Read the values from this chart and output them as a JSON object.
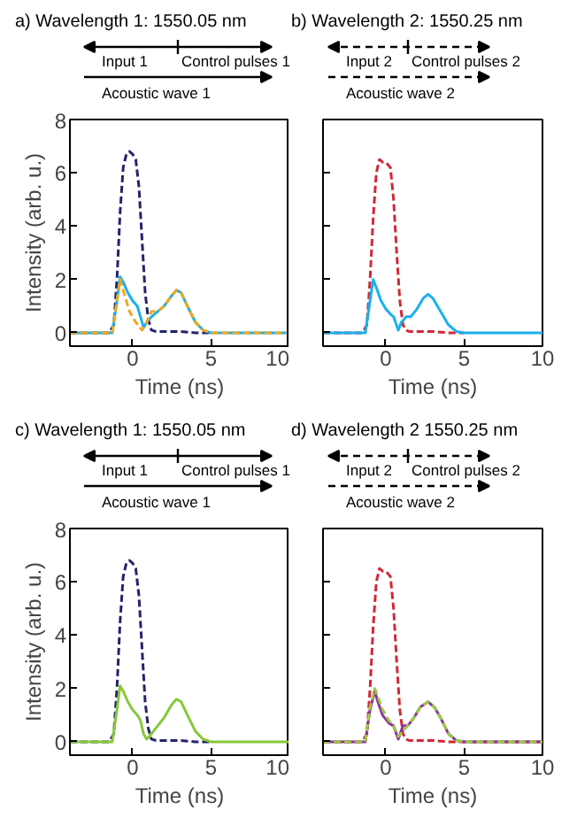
{
  "chart_data": [
    {
      "type": "line",
      "title": "a) Wavelength 1: 1550.05 nm",
      "xlabel": "Time (ns)",
      "ylabel": "Intensity (arb. u.)",
      "annotations": [
        "Input 1",
        "Control pulses 1",
        "Acoustic wave 1"
      ],
      "xlim": [
        -4,
        10
      ],
      "ylim": [
        -0.5,
        8
      ],
      "xticks": [
        0,
        5,
        10
      ],
      "yticks": [
        0,
        2,
        4,
        6,
        8
      ],
      "grid": false,
      "series": [
        {
          "color": "#23236e",
          "line_style": "dashed",
          "x": [
            -4,
            -1.5,
            -1.2,
            -1,
            -0.8,
            -0.6,
            -0.4,
            -0.2,
            0,
            0.2,
            0.4,
            0.6,
            0.8,
            1,
            1.2,
            1.5,
            2,
            3,
            4,
            5
          ],
          "values": [
            0,
            0,
            0.3,
            2,
            4.5,
            6.2,
            6.7,
            6.8,
            6.7,
            6.5,
            5.5,
            3.5,
            1.5,
            0.5,
            0.1,
            0.05,
            0.05,
            0.05,
            0,
            0
          ]
        },
        {
          "color": "#1ab0ec",
          "line_style": "solid",
          "x": [
            -4,
            -1.3,
            -1,
            -0.8,
            -0.6,
            -0.3,
            0,
            0.3,
            0.5,
            0.7,
            0.9,
            1.2,
            1.6,
            2,
            2.5,
            2.8,
            3.1,
            3.5,
            4,
            4.5,
            5,
            9.8
          ],
          "values": [
            0,
            0,
            1.2,
            2.1,
            1.9,
            1.5,
            1.2,
            1,
            0.6,
            0.2,
            0.4,
            0.6,
            0.8,
            1,
            1.4,
            1.6,
            1.5,
            1,
            0.4,
            0.1,
            0,
            0
          ]
        },
        {
          "color": "#f0a820",
          "line_style": "dashed",
          "x": [
            -4,
            -1.3,
            -1,
            -0.8,
            -0.5,
            -0.2,
            0.2,
            0.6,
            0.9,
            1.2,
            1.6,
            2,
            2.5,
            2.8,
            3.1,
            3.5,
            4,
            4.5,
            5,
            9.8
          ],
          "values": [
            0,
            0,
            1.2,
            2,
            1.4,
            0.8,
            0.4,
            0.1,
            0.4,
            0.8,
            0.8,
            1,
            1.4,
            1.6,
            1.5,
            1,
            0.4,
            0.1,
            0,
            0
          ]
        }
      ]
    },
    {
      "type": "line",
      "title": "b) Wavelength 2: 1550.25 nm",
      "xlabel": "Time (ns)",
      "annotations": [
        "Input 2",
        "Control pulses 2",
        "Acoustic wave 2"
      ],
      "xlim": [
        -4,
        10
      ],
      "ylim": [
        -0.5,
        8
      ],
      "xticks": [
        0,
        5,
        10
      ],
      "yticks": [
        0,
        2,
        4,
        6,
        8
      ],
      "tick_labels": "x",
      "grid": false,
      "series": [
        {
          "color": "#d02838",
          "line_style": "dashed",
          "x": [
            -4,
            -1.5,
            -1.2,
            -1,
            -0.8,
            -0.6,
            -0.4,
            -0.2,
            0,
            0.3,
            0.5,
            0.7,
            0.9,
            1.1,
            1.3,
            1.5,
            2,
            3,
            4,
            5
          ],
          "values": [
            0,
            0,
            0.3,
            2,
            4.3,
            6,
            6.5,
            6.4,
            6.4,
            6.2,
            5,
            3,
            1.2,
            0.3,
            0.1,
            0.05,
            0.05,
            0.05,
            0,
            0
          ]
        },
        {
          "color": "#1ab0ec",
          "line_style": "solid",
          "x": [
            -4,
            -1.3,
            -1,
            -0.8,
            -0.6,
            -0.3,
            0,
            0.3,
            0.5,
            0.8,
            1,
            1.3,
            1.6,
            2,
            2.4,
            2.7,
            3,
            3.4,
            4,
            4.5,
            5,
            10
          ],
          "values": [
            0,
            0,
            1.2,
            2,
            1.7,
            1.2,
            0.9,
            0.7,
            0.6,
            0.1,
            0.4,
            0.6,
            0.6,
            0.9,
            1.3,
            1.45,
            1.3,
            0.9,
            0.3,
            0.05,
            0,
            0
          ]
        }
      ]
    },
    {
      "type": "line",
      "title": "c) Wavelength 1: 1550.05 nm",
      "xlabel": "Time (ns)",
      "ylabel": "Intensity (arb. u.)",
      "annotations": [
        "Input 1",
        "Control pulses 1",
        "Acoustic wave 1"
      ],
      "xlim": [
        -4,
        10
      ],
      "ylim": [
        -0.5,
        8
      ],
      "xticks": [
        0,
        5,
        10
      ],
      "yticks": [
        0,
        2,
        4,
        6,
        8
      ],
      "grid": false,
      "series": [
        {
          "color": "#23236e",
          "line_style": "dashed",
          "x": [
            -4,
            -1.5,
            -1.2,
            -1,
            -0.8,
            -0.6,
            -0.4,
            -0.2,
            0,
            0.2,
            0.4,
            0.6,
            0.8,
            1,
            1.2,
            1.5,
            2,
            3,
            4,
            5
          ],
          "values": [
            0,
            0,
            0.3,
            2,
            4.5,
            6.2,
            6.7,
            6.8,
            6.7,
            6.5,
            5.5,
            3.5,
            1.5,
            0.5,
            0.1,
            0.05,
            0.05,
            0.05,
            0,
            0
          ]
        },
        {
          "color": "#88c83a",
          "line_style": "solid",
          "x": [
            -4,
            -1.3,
            -1,
            -0.8,
            -0.6,
            -0.3,
            0,
            0.3,
            0.5,
            0.7,
            0.9,
            1.2,
            1.6,
            2,
            2.5,
            2.8,
            3.1,
            3.5,
            4,
            4.5,
            5,
            10
          ],
          "values": [
            0,
            0,
            1.2,
            2.1,
            1.9,
            1.5,
            1.2,
            1,
            0.8,
            0.3,
            0.1,
            0.3,
            0.6,
            0.9,
            1.4,
            1.6,
            1.5,
            1,
            0.4,
            0.1,
            0,
            0
          ]
        }
      ]
    },
    {
      "type": "line",
      "title": "d) Wavelength 2 1550.25 nm",
      "xlabel": "Time (ns)",
      "annotations": [
        "Input 2",
        "Control pulses 2",
        "Acoustic wave 2"
      ],
      "xlim": [
        -4,
        10
      ],
      "ylim": [
        -0.5,
        8
      ],
      "xticks": [
        0,
        5,
        10
      ],
      "yticks": [
        0,
        2,
        4,
        6,
        8
      ],
      "tick_labels": "x",
      "grid": false,
      "series": [
        {
          "color": "#d02838",
          "line_style": "dashed",
          "x": [
            -4,
            -1.5,
            -1.2,
            -1,
            -0.8,
            -0.6,
            -0.4,
            -0.2,
            0,
            0.3,
            0.5,
            0.7,
            0.9,
            1.1,
            1.3,
            1.5,
            2,
            3,
            4,
            5,
            10
          ],
          "values": [
            0,
            0,
            0.3,
            2,
            4.3,
            6,
            6.5,
            6.4,
            6.4,
            6.2,
            5,
            3,
            1.2,
            0.3,
            0.1,
            0.05,
            0.05,
            0.05,
            0,
            0,
            0
          ]
        },
        {
          "color": "#9030a0",
          "line_style": "solid",
          "x": [
            -4,
            -1.3,
            -1,
            -0.7,
            -0.5,
            -0.2,
            0.2,
            0.5,
            0.8,
            1.1,
            1.4,
            1.8,
            2.2,
            2.7,
            3.1,
            3.5,
            4,
            4.5,
            5,
            10
          ],
          "values": [
            0,
            0,
            1.2,
            1.9,
            1.5,
            1,
            0.7,
            0.6,
            0.1,
            0.6,
            0.6,
            0.9,
            1.3,
            1.5,
            1.3,
            0.9,
            0.3,
            0.05,
            0,
            0
          ]
        },
        {
          "color": "#98cc40",
          "line_style": "dashed",
          "x": [
            -4,
            -1.3,
            -1,
            -0.7,
            -0.5,
            -0.2,
            0.2,
            0.5,
            0.8,
            1.1,
            1.4,
            1.8,
            2.2,
            2.7,
            3.1,
            3.5,
            4,
            4.5,
            5,
            10
          ],
          "values": [
            0,
            0,
            1.3,
            2,
            1.7,
            1.2,
            0.8,
            0.6,
            0.2,
            0.4,
            0.6,
            0.9,
            1.3,
            1.5,
            1.3,
            0.9,
            0.3,
            0.05,
            0,
            0
          ]
        }
      ]
    }
  ]
}
